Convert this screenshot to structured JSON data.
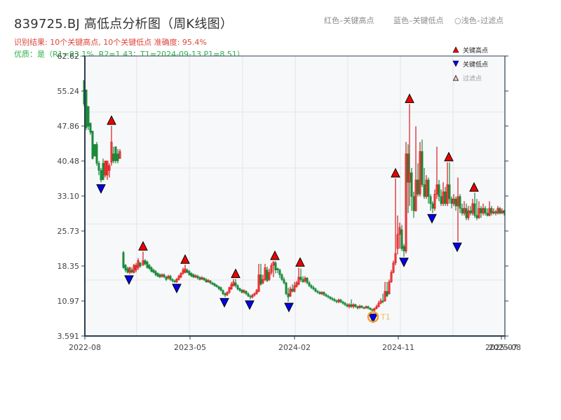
{
  "header": {
    "title": "839725.BJ 高低点分析图（周K线图）",
    "result_line": "识别结果: 10个关键高点, 10个关键低点   准确度: 95.4%",
    "quality_line": "优质：是（R1=93.1%, R2=1.43；T1=2024-09-13 P1=8.51）",
    "legend_red": "红色–关键高点",
    "legend_blue": "蓝色–关键低点",
    "legend_filtered": "○浅色–过滤点"
  },
  "legend": {
    "items": [
      {
        "label": "关键高点",
        "marker": "up-triangle",
        "color": "#ee0000"
      },
      {
        "label": "关键低点",
        "marker": "down-triangle",
        "color": "#0000ee"
      },
      {
        "label": "过滤点",
        "marker": "up-triangle-outline",
        "color": "#ffcccc"
      }
    ]
  },
  "colors": {
    "up": "#d7191c",
    "down": "#1a8a3a",
    "high_marker": "#ee0000",
    "low_marker": "#0000ee",
    "t1_ring": "#f0a030",
    "plot_bg": "#f7f8fa",
    "grid": "#e3e5e8",
    "axis": "#2c3e50"
  },
  "annotation": {
    "label": "T1",
    "date": "2024-09-13",
    "price": 8.51
  },
  "chart_data": {
    "type": "candlestick",
    "title": "839725.BJ 高低点分析图（周K线图）",
    "xlabel": "",
    "ylabel": "",
    "ylim": [
      3.591,
      62.62
    ],
    "yticks": [
      "62.62",
      "55.24",
      "47.86",
      "40.48",
      "33.10",
      "25.73",
      "18.35",
      "10.97",
      "3.591"
    ],
    "xticks": [
      "2022-08",
      "2023-05",
      "2024-02",
      "2024-11",
      "2025-07",
      "2025-08"
    ],
    "grid": true,
    "legend_position": "upper right",
    "summary": {
      "key_highs": 10,
      "key_lows": 10,
      "accuracy": "95.4%",
      "R1": "93.1%",
      "R2": 1.43,
      "T1": "2024-09-13",
      "P1": 8.51
    },
    "key_highs": [
      {
        "x": 159,
        "price": 47.9
      },
      {
        "x": 204,
        "price": 21.4
      },
      {
        "x": 264,
        "price": 18.6
      },
      {
        "x": 336,
        "price": 15.6
      },
      {
        "x": 392,
        "price": 19.4
      },
      {
        "x": 428,
        "price": 18.0
      },
      {
        "x": 564,
        "price": 36.8
      },
      {
        "x": 584,
        "price": 52.5
      },
      {
        "x": 640,
        "price": 40.2
      },
      {
        "x": 676,
        "price": 33.8
      }
    ],
    "key_lows": [
      {
        "x": 144,
        "price": 35.8
      },
      {
        "x": 184,
        "price": 16.6
      },
      {
        "x": 252,
        "price": 14.8
      },
      {
        "x": 320,
        "price": 11.8
      },
      {
        "x": 356,
        "price": 11.3
      },
      {
        "x": 412,
        "price": 10.8
      },
      {
        "x": 532,
        "price": 8.51
      },
      {
        "x": 576,
        "price": 20.3
      },
      {
        "x": 616,
        "price": 29.5
      },
      {
        "x": 652,
        "price": 23.5
      }
    ],
    "candles": [
      [
        120,
        57.5,
        52.5,
        57.5,
        52.0
      ],
      [
        123,
        55.5,
        47.5,
        55.0,
        47.0
      ],
      [
        126,
        52.0,
        47.8,
        52.0,
        47.0
      ],
      [
        129,
        48.5,
        46.5,
        48.0,
        46.0
      ],
      [
        132,
        46.8,
        41.0,
        46.5,
        40.8
      ],
      [
        135,
        44.0,
        41.5,
        44.0,
        41.5
      ],
      [
        138,
        44.0,
        40.0,
        44.5,
        39.5
      ],
      [
        141,
        40.0,
        38.5,
        40.5,
        37.5
      ],
      [
        144,
        38.5,
        36.5,
        39.0,
        36.0
      ],
      [
        147,
        40.0,
        36.5,
        41.0,
        36.5
      ],
      [
        150,
        37.5,
        40.5,
        40.5,
        37.0
      ],
      [
        153,
        37.5,
        40.5,
        40.5,
        36.5
      ],
      [
        156,
        38.5,
        39.5,
        40.0,
        37.0
      ],
      [
        159,
        40.2,
        44.5,
        47.9,
        39.5
      ],
      [
        162,
        42.0,
        40.5,
        43.5,
        40.0
      ],
      [
        165,
        43.5,
        40.5,
        43.5,
        40.0
      ],
      [
        168,
        42.0,
        40.5,
        43.0,
        40.0
      ],
      [
        171,
        41.0,
        42.5,
        43.0,
        41.0
      ],
      [
        176,
        21.2,
        18.0,
        21.5,
        17.8
      ],
      [
        179,
        18.5,
        17.5,
        18.8,
        17.0
      ],
      [
        182,
        17.8,
        17.0,
        18.2,
        16.8
      ],
      [
        185,
        17.0,
        18.0,
        18.2,
        16.6
      ],
      [
        188,
        17.5,
        17.0,
        18.0,
        16.8
      ],
      [
        191,
        17.0,
        18.5,
        18.8,
        16.8
      ],
      [
        194,
        17.5,
        18.5,
        19.0,
        17.0
      ],
      [
        197,
        18.0,
        19.5,
        20.0,
        17.5
      ],
      [
        200,
        19.0,
        18.3,
        19.2,
        18.0
      ],
      [
        204,
        18.5,
        19.5,
        21.4,
        18.4
      ],
      [
        207,
        19.5,
        18.8,
        19.8,
        18.5
      ],
      [
        210,
        19.2,
        18.0,
        19.5,
        17.8
      ],
      [
        213,
        18.5,
        17.8,
        18.8,
        17.5
      ],
      [
        216,
        18.0,
        17.2,
        18.3,
        17.0
      ],
      [
        219,
        17.5,
        17.0,
        17.8,
        16.8
      ],
      [
        222,
        17.2,
        16.5,
        17.5,
        16.2
      ],
      [
        225,
        16.8,
        16.2,
        17.0,
        16.0
      ],
      [
        228,
        16.5,
        16.0,
        16.8,
        15.8
      ],
      [
        231,
        16.2,
        16.5,
        16.8,
        15.9
      ],
      [
        234,
        16.5,
        16.0,
        16.8,
        15.8
      ],
      [
        237,
        16.0,
        15.5,
        16.3,
        15.2
      ],
      [
        240,
        15.8,
        16.2,
        16.5,
        15.5
      ],
      [
        243,
        16.2,
        15.5,
        16.5,
        15.2
      ],
      [
        246,
        15.5,
        15.2,
        15.8,
        14.9
      ],
      [
        249,
        15.2,
        15.0,
        15.5,
        14.8
      ],
      [
        252,
        15.0,
        15.6,
        15.8,
        14.8
      ],
      [
        255,
        15.5,
        16.2,
        16.5,
        15.3
      ],
      [
        258,
        16.0,
        16.8,
        17.0,
        15.8
      ],
      [
        261,
        16.8,
        17.5,
        18.0,
        16.5
      ],
      [
        264,
        17.0,
        17.8,
        18.6,
        16.8
      ],
      [
        267,
        17.5,
        17.0,
        17.8,
        16.8
      ],
      [
        270,
        17.2,
        16.5,
        17.5,
        16.3
      ],
      [
        273,
        16.8,
        16.2,
        17.0,
        16.0
      ],
      [
        276,
        16.5,
        16.0,
        16.8,
        15.8
      ],
      [
        279,
        16.0,
        16.3,
        16.6,
        15.8
      ],
      [
        282,
        16.2,
        15.8,
        16.5,
        15.5
      ],
      [
        285,
        15.9,
        15.5,
        16.2,
        15.3
      ],
      [
        288,
        15.6,
        15.9,
        16.2,
        15.4
      ],
      [
        291,
        15.8,
        15.4,
        16.0,
        15.2
      ],
      [
        294,
        15.5,
        15.0,
        15.8,
        14.8
      ],
      [
        297,
        15.0,
        15.3,
        15.6,
        14.8
      ],
      [
        300,
        15.2,
        14.8,
        15.4,
        14.5
      ],
      [
        303,
        14.8,
        14.5,
        15.0,
        14.3
      ],
      [
        306,
        14.6,
        14.2,
        14.8,
        14.0
      ],
      [
        309,
        14.3,
        14.0,
        14.5,
        13.8
      ],
      [
        312,
        14.0,
        13.6,
        14.2,
        13.3
      ],
      [
        315,
        13.8,
        13.2,
        14.0,
        13.0
      ],
      [
        318,
        13.2,
        12.5,
        13.4,
        12.2
      ],
      [
        321,
        12.5,
        12.2,
        12.8,
        11.8
      ],
      [
        324,
        12.3,
        12.8,
        13.0,
        12.0
      ],
      [
        327,
        12.8,
        13.8,
        14.0,
        12.5
      ],
      [
        330,
        13.5,
        14.5,
        15.0,
        13.3
      ],
      [
        333,
        14.2,
        15.0,
        15.6,
        14.0
      ],
      [
        336,
        14.8,
        14.2,
        15.6,
        13.8
      ],
      [
        339,
        14.2,
        13.5,
        14.5,
        13.2
      ],
      [
        342,
        13.6,
        13.2,
        13.8,
        12.9
      ],
      [
        345,
        13.3,
        12.8,
        13.5,
        12.6
      ],
      [
        348,
        12.8,
        13.2,
        13.4,
        12.5
      ],
      [
        351,
        13.0,
        12.5,
        13.2,
        12.2
      ],
      [
        354,
        12.5,
        12.0,
        12.8,
        11.8
      ],
      [
        357,
        12.0,
        11.8,
        12.3,
        11.3
      ],
      [
        360,
        11.8,
        12.2,
        12.5,
        11.5
      ],
      [
        363,
        12.2,
        12.5,
        12.8,
        11.9
      ],
      [
        366,
        12.5,
        13.2,
        13.5,
        12.3
      ],
      [
        369,
        13.0,
        16.5,
        18.8,
        12.8
      ],
      [
        372,
        16.5,
        14.5,
        18.8,
        14.2
      ],
      [
        375,
        14.8,
        15.5,
        16.5,
        14.5
      ],
      [
        378,
        15.5,
        18.0,
        18.8,
        15.2
      ],
      [
        381,
        17.5,
        15.2,
        18.2,
        15.0
      ],
      [
        384,
        15.5,
        17.0,
        17.8,
        15.2
      ],
      [
        387,
        17.0,
        18.5,
        19.0,
        16.5
      ],
      [
        390,
        18.5,
        19.2,
        19.4,
        16.0
      ],
      [
        393,
        19.0,
        17.5,
        19.4,
        16.8
      ],
      [
        396,
        17.8,
        17.5,
        18.0,
        16.8
      ],
      [
        399,
        17.5,
        16.5,
        17.8,
        15.8
      ],
      [
        402,
        16.5,
        15.5,
        16.8,
        15.2
      ],
      [
        405,
        15.5,
        14.8,
        16.0,
        14.5
      ],
      [
        408,
        14.8,
        12.5,
        15.0,
        12.2
      ],
      [
        411,
        12.5,
        11.8,
        13.8,
        10.8
      ],
      [
        414,
        12.0,
        13.5,
        14.0,
        11.8
      ],
      [
        417,
        13.5,
        13.0,
        14.5,
        12.8
      ],
      [
        420,
        13.0,
        14.2,
        15.0,
        12.8
      ],
      [
        423,
        14.0,
        14.8,
        15.2,
        13.8
      ],
      [
        426,
        14.5,
        16.0,
        18.0,
        14.3
      ],
      [
        429,
        16.0,
        15.5,
        17.8,
        15.0
      ],
      [
        432,
        15.5,
        15.0,
        16.2,
        14.8
      ],
      [
        435,
        15.2,
        15.8,
        16.2,
        14.8
      ],
      [
        438,
        15.8,
        14.8,
        16.0,
        14.5
      ],
      [
        441,
        14.8,
        14.2,
        15.2,
        13.9
      ],
      [
        444,
        14.2,
        13.8,
        14.5,
        13.5
      ],
      [
        447,
        13.8,
        13.5,
        14.2,
        13.2
      ],
      [
        450,
        13.5,
        13.0,
        13.8,
        12.8
      ],
      [
        453,
        13.0,
        12.8,
        13.3,
        12.5
      ],
      [
        456,
        12.8,
        12.5,
        13.1,
        12.3
      ],
      [
        459,
        12.5,
        12.8,
        13.0,
        12.2
      ],
      [
        462,
        12.8,
        12.3,
        13.0,
        12.0
      ],
      [
        465,
        12.3,
        12.0,
        12.6,
        11.8
      ],
      [
        468,
        12.0,
        11.8,
        12.3,
        11.5
      ],
      [
        471,
        11.8,
        11.5,
        12.0,
        11.2
      ],
      [
        474,
        11.5,
        11.3,
        11.8,
        11.0
      ],
      [
        477,
        11.3,
        11.0,
        11.6,
        10.8
      ],
      [
        480,
        11.0,
        10.8,
        11.3,
        10.5
      ],
      [
        483,
        10.8,
        11.2,
        11.5,
        10.5
      ],
      [
        486,
        11.2,
        10.8,
        11.4,
        10.5
      ],
      [
        489,
        10.8,
        10.5,
        11.0,
        10.2
      ],
      [
        492,
        10.5,
        10.2,
        10.8,
        9.9
      ],
      [
        495,
        10.2,
        9.9,
        10.5,
        9.6
      ],
      [
        498,
        9.8,
        10.2,
        10.5,
        9.4
      ],
      [
        501,
        10.2,
        9.8,
        11.3,
        9.5
      ],
      [
        504,
        9.8,
        10.2,
        10.5,
        9.4
      ],
      [
        507,
        10.2,
        9.8,
        10.4,
        9.5
      ],
      [
        510,
        9.8,
        9.5,
        10.0,
        9.2
      ],
      [
        513,
        9.6,
        9.9,
        10.2,
        9.3
      ],
      [
        516,
        9.9,
        9.6,
        10.1,
        9.4
      ],
      [
        519,
        9.6,
        9.5,
        9.8,
        9.2
      ],
      [
        522,
        9.5,
        9.8,
        10.0,
        9.3
      ],
      [
        525,
        9.8,
        9.5,
        10.0,
        9.2
      ],
      [
        528,
        9.5,
        9.2,
        9.6,
        9.0
      ],
      [
        531,
        9.2,
        9.0,
        9.4,
        8.51
      ],
      [
        534,
        9.0,
        9.4,
        9.6,
        8.8
      ],
      [
        537,
        9.4,
        9.8,
        10.2,
        9.2
      ],
      [
        540,
        9.8,
        10.5,
        11.0,
        9.6
      ],
      [
        543,
        10.5,
        11.0,
        11.5,
        10.3
      ],
      [
        546,
        11.0,
        10.8,
        12.5,
        10.5
      ],
      [
        549,
        11.0,
        13.0,
        15.0,
        10.8
      ],
      [
        552,
        13.0,
        12.0,
        15.0,
        11.8
      ],
      [
        555,
        12.5,
        15.0,
        15.5,
        12.3
      ],
      [
        558,
        15.0,
        17.0,
        17.5,
        14.8
      ],
      [
        561,
        17.0,
        19.0,
        19.5,
        16.8
      ],
      [
        564,
        19.0,
        21.0,
        36.8,
        18.5
      ],
      [
        567,
        22.0,
        25.0,
        29.0,
        20.8
      ],
      [
        570,
        25.0,
        26.5,
        27.5,
        22.0
      ],
      [
        573,
        26.0,
        22.0,
        27.0,
        21.5
      ],
      [
        576,
        22.5,
        21.5,
        23.0,
        20.3
      ],
      [
        579,
        21.5,
        42.0,
        44.5,
        21.0
      ],
      [
        582,
        42.0,
        36.0,
        44.0,
        29.5
      ],
      [
        584,
        36.0,
        38.0,
        52.5,
        31.0
      ],
      [
        587,
        38.0,
        33.0,
        39.0,
        30.0
      ],
      [
        590,
        33.0,
        30.0,
        34.0,
        28.5
      ],
      [
        593,
        30.0,
        36.5,
        47.8,
        29.8
      ],
      [
        596,
        36.5,
        33.5,
        40.0,
        33.0
      ],
      [
        599,
        33.5,
        42.5,
        44.5,
        33.0
      ],
      [
        602,
        42.5,
        35.5,
        45.0,
        35.0
      ],
      [
        605,
        35.5,
        33.0,
        39.0,
        32.5
      ],
      [
        608,
        33.0,
        36.5,
        37.5,
        32.5
      ],
      [
        611,
        36.5,
        33.0,
        37.0,
        31.5
      ],
      [
        614,
        33.0,
        31.5,
        33.5,
        30.0
      ],
      [
        617,
        31.5,
        30.5,
        32.0,
        29.5
      ],
      [
        620,
        30.5,
        33.5,
        34.5,
        30.0
      ],
      [
        623,
        33.5,
        35.5,
        43.5,
        32.5
      ],
      [
        626,
        35.5,
        33.0,
        36.5,
        32.0
      ],
      [
        629,
        33.0,
        31.5,
        34.5,
        31.0
      ],
      [
        632,
        31.5,
        34.0,
        36.0,
        31.0
      ],
      [
        635,
        34.0,
        31.5,
        35.0,
        31.0
      ],
      [
        638,
        31.5,
        35.5,
        40.2,
        31.0
      ],
      [
        641,
        35.5,
        32.5,
        40.2,
        31.5
      ],
      [
        644,
        32.5,
        31.5,
        33.0,
        30.5
      ],
      [
        647,
        31.5,
        32.5,
        33.5,
        31.0
      ],
      [
        650,
        32.5,
        31.0,
        33.0,
        30.0
      ],
      [
        653,
        31.0,
        33.0,
        37.0,
        23.5
      ],
      [
        656,
        33.0,
        30.5,
        33.5,
        29.5
      ],
      [
        659,
        30.5,
        29.5,
        31.5,
        29.0
      ],
      [
        662,
        29.5,
        30.5,
        32.0,
        29.0
      ],
      [
        665,
        30.5,
        28.5,
        31.5,
        28.0
      ],
      [
        668,
        28.5,
        30.0,
        31.0,
        28.0
      ],
      [
        671,
        30.0,
        29.5,
        31.0,
        29.0
      ],
      [
        674,
        29.5,
        31.5,
        32.5,
        29.0
      ],
      [
        677,
        31.5,
        29.0,
        33.8,
        28.5
      ],
      [
        680,
        29.0,
        28.5,
        32.5,
        28.0
      ],
      [
        683,
        28.5,
        30.5,
        32.0,
        28.3
      ],
      [
        686,
        30.5,
        29.5,
        31.0,
        28.5
      ],
      [
        689,
        29.5,
        30.5,
        31.5,
        29.0
      ],
      [
        692,
        30.5,
        29.5,
        31.0,
        29.0
      ],
      [
        695,
        29.5,
        29.0,
        30.5,
        28.8
      ],
      [
        698,
        29.0,
        30.5,
        32.0,
        28.8
      ],
      [
        701,
        30.5,
        29.5,
        31.0,
        29.0
      ],
      [
        704,
        29.5,
        29.8,
        30.5,
        29.2
      ],
      [
        707,
        29.8,
        29.5,
        30.2,
        29.0
      ],
      [
        710,
        29.5,
        30.5,
        31.0,
        29.2
      ],
      [
        713,
        30.5,
        29.5,
        30.8,
        29.2
      ],
      [
        716,
        29.5,
        30.0,
        30.5,
        29.3
      ],
      [
        719,
        30.0,
        29.5,
        30.2,
        29.0
      ]
    ],
    "candle_format": [
      "x_px",
      "open",
      "close",
      "high",
      "low"
    ]
  }
}
